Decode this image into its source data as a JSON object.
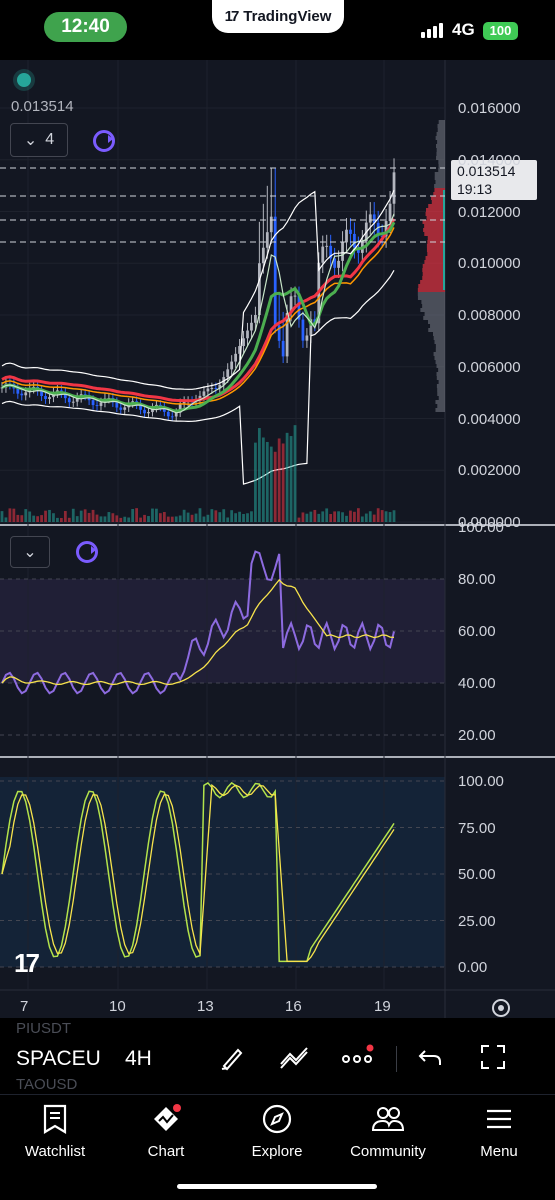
{
  "status_bar": {
    "time": "12:40",
    "network": "4G",
    "battery": "100",
    "overlay_app": "TradingView"
  },
  "chart": {
    "last_price": "0.013514",
    "price_tag": {
      "price": "0.013514",
      "countdown": "19:13"
    },
    "indicator_count": "4",
    "price_axis": [
      "0.016000",
      "0.014000",
      "0.012000",
      "0.010000",
      "0.008000",
      "0.006000",
      "0.004000",
      "0.002000",
      "0.000000"
    ],
    "rsi_axis": [
      "100.00",
      "80.00",
      "60.00",
      "40.00",
      "20.00"
    ],
    "stoch_axis": [
      "100.00",
      "75.00",
      "50.00",
      "25.00",
      "0.00"
    ],
    "time_axis": [
      "7",
      "10",
      "13",
      "16",
      "19"
    ],
    "colors": {
      "background": "#131722",
      "up": "#787b86",
      "down": "#2962ff",
      "rsi": "#7e57c2",
      "signal": "#f7e34c",
      "stoch_k": "#b3e34b",
      "stoch_d": "#f7e34c"
    }
  },
  "toolbar": {
    "symbol": "SPACEU",
    "interval": "4H",
    "ghost_symbol_top": "PIUSDT",
    "ghost_symbol_bottom": "TAOUSD"
  },
  "tabs": [
    {
      "label": "Watchlist",
      "icon": "bookmark-icon"
    },
    {
      "label": "Chart",
      "icon": "chart-icon"
    },
    {
      "label": "Explore",
      "icon": "compass-icon"
    },
    {
      "label": "Community",
      "icon": "people-icon"
    },
    {
      "label": "Menu",
      "icon": "hamburger-icon"
    }
  ]
}
